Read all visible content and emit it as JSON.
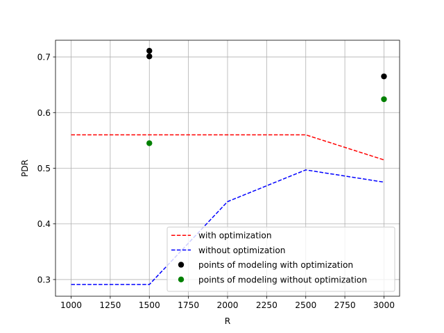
{
  "chart_data": {
    "type": "line",
    "title": "",
    "xlabel": "R",
    "ylabel": "PDR",
    "xlim": [
      900,
      3100
    ],
    "ylim": [
      0.27,
      0.73
    ],
    "xticks": [
      1000,
      1250,
      1500,
      1750,
      2000,
      2250,
      2500,
      2750,
      3000
    ],
    "xtick_labels": [
      "1000",
      "1250",
      "1500",
      "1750",
      "2000",
      "2250",
      "2500",
      "2750",
      "3000"
    ],
    "yticks": [
      0.3,
      0.4,
      0.5,
      0.6,
      0.7
    ],
    "ytick_labels": [
      "0.3",
      "0.4",
      "0.5",
      "0.6",
      "0.7"
    ],
    "grid": true,
    "legend_position": "lower-right",
    "series": [
      {
        "name": "with optimization",
        "kind": "line",
        "style": "dashed",
        "color": "#ff0000",
        "x": [
          1000,
          1500,
          2000,
          2500,
          3000
        ],
        "y": [
          0.56,
          0.56,
          0.56,
          0.56,
          0.515
        ]
      },
      {
        "name": "without optimization",
        "kind": "line",
        "style": "dashed",
        "color": "#0000ff",
        "x": [
          1000,
          1500,
          2000,
          2500,
          3000
        ],
        "y": [
          0.291,
          0.291,
          0.44,
          0.497,
          0.475
        ]
      },
      {
        "name": "points of modeling with optimization",
        "kind": "scatter",
        "color": "#000000",
        "x": [
          1500,
          1500,
          3000
        ],
        "y": [
          0.711,
          0.701,
          0.665
        ]
      },
      {
        "name": "points of modeling without optimization",
        "kind": "scatter",
        "color": "#008000",
        "x": [
          1500,
          3000
        ],
        "y": [
          0.545,
          0.624
        ]
      }
    ]
  }
}
